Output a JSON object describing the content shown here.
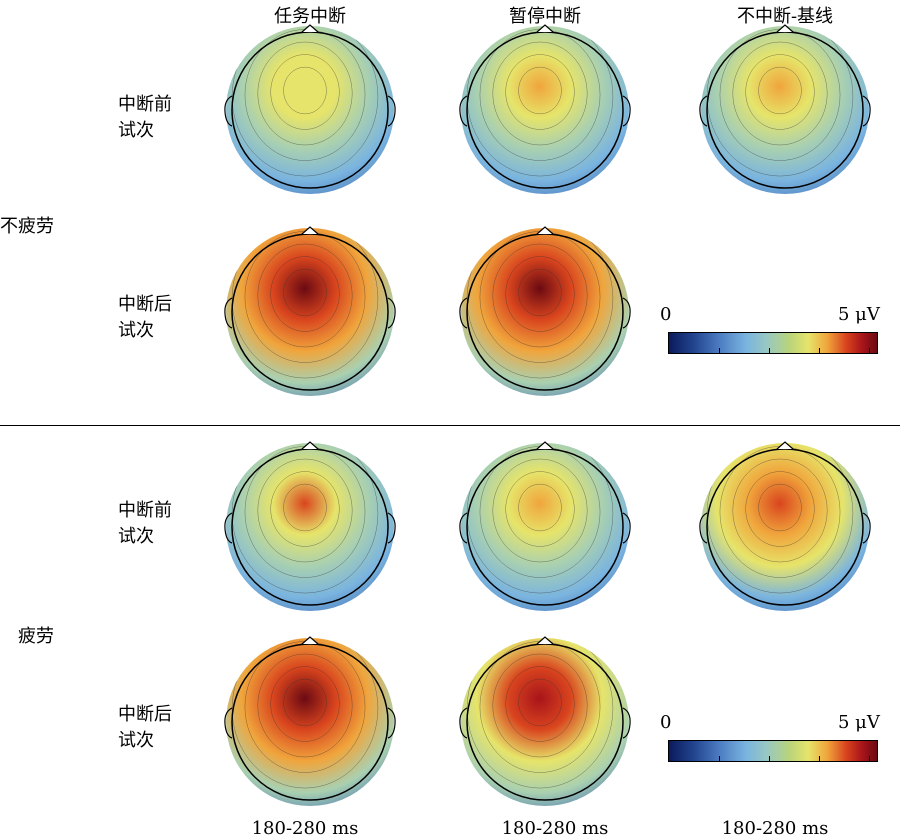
{
  "columns": [
    "任务中断",
    "暂停中断",
    "不中断-基线"
  ],
  "groups": [
    {
      "label": "不疲劳",
      "rows": [
        {
          "label1": "中断前",
          "label2": "试次"
        },
        {
          "label1": "中断后",
          "label2": "试次"
        }
      ]
    },
    {
      "label": "疲劳",
      "rows": [
        {
          "label1": "中断前",
          "label2": "试次"
        },
        {
          "label1": "中断后",
          "label2": "试次"
        }
      ]
    }
  ],
  "colorbar": {
    "min_label": "0",
    "max_label": "5 μV",
    "min": 0,
    "max": 5,
    "colors": [
      "#0c1a5c",
      "#4f7fc4",
      "#97c8c2",
      "#e6e46a",
      "#d9451e",
      "#6b0a12"
    ]
  },
  "time_window": [
    "180-280 ms",
    "180-280 ms",
    "180-280 ms"
  ],
  "maps": [
    {
      "id": "nofatigue-pre-task",
      "peak_uV": 2.8
    },
    {
      "id": "nofatigue-pre-pause",
      "peak_uV": 3.3
    },
    {
      "id": "nofatigue-pre-baseline",
      "peak_uV": 3.1
    },
    {
      "id": "nofatigue-post-task",
      "peak_uV": 4.7
    },
    {
      "id": "nofatigue-post-pause",
      "peak_uV": 5.0
    },
    {
      "id": "fatigue-pre-task",
      "peak_uV": 3.5
    },
    {
      "id": "fatigue-pre-pause",
      "peak_uV": 3.4
    },
    {
      "id": "fatigue-pre-baseline",
      "peak_uV": 3.8
    },
    {
      "id": "fatigue-post-task",
      "peak_uV": 4.9
    },
    {
      "id": "fatigue-post-pause",
      "peak_uV": 4.6
    }
  ]
}
